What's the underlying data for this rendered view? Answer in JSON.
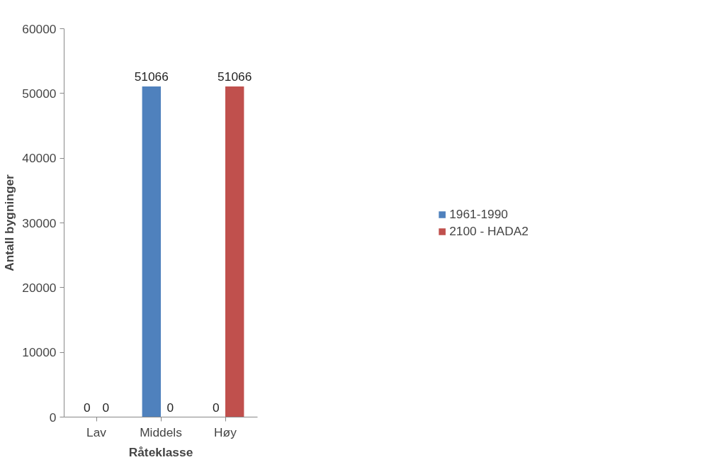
{
  "chart_data": {
    "type": "bar",
    "xlabel": "Råteklasse",
    "ylabel": "Antall bygninger",
    "categories": [
      "Lav",
      "Middels",
      "Høy"
    ],
    "series": [
      {
        "name": "1961-1990",
        "color": "#4f81bd",
        "values": [
          0,
          51066,
          0
        ]
      },
      {
        "name": "2100 - HADA2",
        "color": "#c0504d",
        "values": [
          0,
          0,
          51066
        ]
      }
    ],
    "ylim": [
      0,
      60000
    ],
    "yticks": [
      0,
      10000,
      20000,
      30000,
      40000,
      50000,
      60000
    ],
    "data_labels": true,
    "grid": false,
    "legend": "right"
  }
}
